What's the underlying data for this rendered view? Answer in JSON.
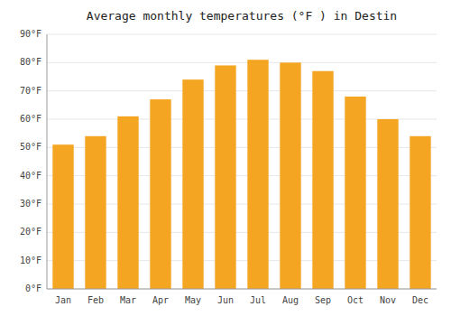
{
  "chart_data": {
    "type": "bar",
    "title": "Average monthly temperatures (°F ) in Destin",
    "categories": [
      "Jan",
      "Feb",
      "Mar",
      "Apr",
      "May",
      "Jun",
      "Jul",
      "Aug",
      "Sep",
      "Oct",
      "Nov",
      "Dec"
    ],
    "values": [
      51,
      54,
      61,
      67,
      74,
      79,
      81,
      80,
      77,
      68,
      60,
      54
    ],
    "color": "#F4A623",
    "ylim": [
      0,
      90
    ],
    "yticks": [
      {
        "value": 0,
        "label": "0°F"
      },
      {
        "value": 10,
        "label": "10°F"
      },
      {
        "value": 20,
        "label": "20°F"
      },
      {
        "value": 30,
        "label": "30°F"
      },
      {
        "value": 40,
        "label": "40°F"
      },
      {
        "value": 50,
        "label": "50°F"
      },
      {
        "value": 60,
        "label": "60°F"
      },
      {
        "value": 70,
        "label": "70°F"
      },
      {
        "value": 80,
        "label": "80°F"
      },
      {
        "value": 90,
        "label": "90°F"
      }
    ],
    "grid": true
  }
}
